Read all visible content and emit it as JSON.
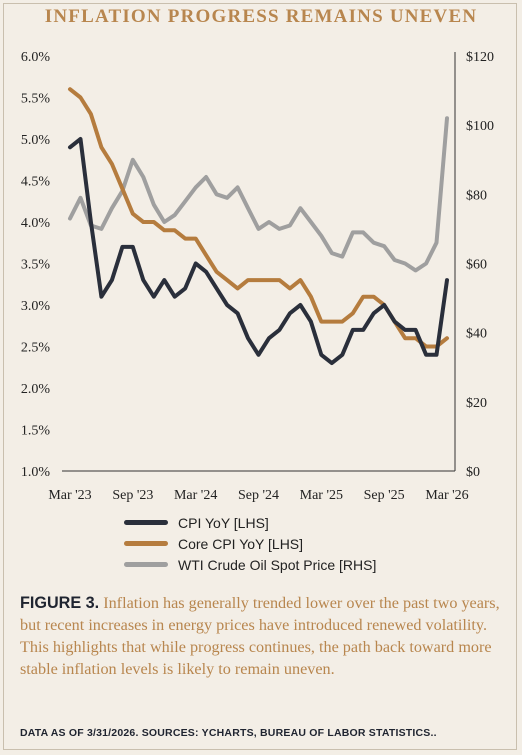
{
  "title": "INFLATION PROGRESS REMAINS UNEVEN",
  "caption": {
    "figure_label": "FIGURE 3.",
    "text": "Inflation has generally trended lower over the past two years, but recent increases in energy prices have introduced renewed volatility. This highlights that while progress continues, the path back toward more stable inflation levels is likely to remain uneven."
  },
  "source": "DATA AS OF 3/31/2026. SOURCES: YCHARTS, BUREAU OF LABOR STATISTICS..",
  "colors": {
    "cpi": "#2a2f3b",
    "core": "#b57c3e",
    "wti": "#9f9f9f",
    "title": "#b8864e",
    "background": "#f3eee6"
  },
  "chart_data": {
    "type": "line",
    "x": [
      "Mar '23",
      "Apr '23",
      "May '23",
      "Jun '23",
      "Jul '23",
      "Aug '23",
      "Sep '23",
      "Oct '23",
      "Nov '23",
      "Dec '23",
      "Jan '24",
      "Feb '24",
      "Mar '24",
      "Apr '24",
      "May '24",
      "Jun '24",
      "Jul '24",
      "Aug '24",
      "Sep '24",
      "Oct '24",
      "Nov '24",
      "Dec '24",
      "Jan '25",
      "Feb '25",
      "Mar '25",
      "Apr '25",
      "May '25",
      "Jun '25",
      "Jul '25",
      "Aug '25",
      "Sep '25",
      "Oct '25",
      "Nov '25",
      "Dec '25",
      "Jan '26",
      "Feb '26",
      "Mar '26"
    ],
    "x_tick_labels": [
      "Mar '23",
      "Sep '23",
      "Mar '24",
      "Sep '24",
      "Mar '25",
      "Sep '25",
      "Mar '26"
    ],
    "y_left_ticks": [
      "1.0%",
      "1.5%",
      "2.0%",
      "2.5%",
      "3.0%",
      "3.5%",
      "4.0%",
      "4.5%",
      "5.0%",
      "5.5%",
      "6.0%"
    ],
    "y_right_ticks": [
      "$0",
      "$20",
      "$40",
      "$60",
      "$80",
      "$100",
      "$120"
    ],
    "y_left_range": [
      1.0,
      6.0
    ],
    "y_right_range": [
      0,
      120
    ],
    "grid": false,
    "legend_position": "bottom",
    "series": [
      {
        "name": "CPI YoY [LHS]",
        "axis": "left",
        "values": [
          4.9,
          5.0,
          4.0,
          3.1,
          3.3,
          3.7,
          3.7,
          3.3,
          3.1,
          3.3,
          3.1,
          3.2,
          3.5,
          3.4,
          3.2,
          3.0,
          2.9,
          2.6,
          2.4,
          2.6,
          2.7,
          2.9,
          3.0,
          2.8,
          2.4,
          2.3,
          2.4,
          2.7,
          2.7,
          2.9,
          3.0,
          2.8,
          2.7,
          2.7,
          2.4,
          2.4,
          3.3
        ]
      },
      {
        "name": "Core CPI YoY [LHS]",
        "axis": "left",
        "values": [
          5.6,
          5.5,
          5.3,
          4.9,
          4.7,
          4.4,
          4.1,
          4.0,
          4.0,
          3.9,
          3.9,
          3.8,
          3.8,
          3.6,
          3.4,
          3.3,
          3.2,
          3.3,
          3.3,
          3.3,
          3.3,
          3.2,
          3.3,
          3.1,
          2.8,
          2.8,
          2.8,
          2.9,
          3.1,
          3.1,
          3.0,
          2.8,
          2.6,
          2.6,
          2.5,
          2.5,
          2.6
        ]
      },
      {
        "name": "WTI Crude Oil Spot Price [RHS]",
        "axis": "right",
        "values": [
          73,
          79,
          71,
          70,
          76,
          81,
          90,
          85,
          77,
          72,
          74,
          78,
          82,
          85,
          80,
          79,
          82,
          76,
          70,
          72,
          70,
          71,
          76,
          72,
          68,
          63,
          62,
          69,
          69,
          66,
          65,
          61,
          60,
          58,
          60,
          66,
          102
        ]
      }
    ]
  }
}
